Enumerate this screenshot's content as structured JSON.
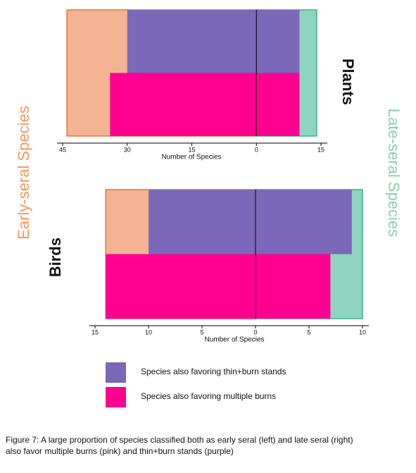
{
  "chart_data": [
    {
      "type": "bar",
      "title": "Plants",
      "xlabel": "Number of Species",
      "xlim": [
        -45,
        15
      ],
      "xticks": [
        {
          "value": -45,
          "label": "45"
        },
        {
          "value": -30,
          "label": "30"
        },
        {
          "value": -15,
          "label": "15"
        },
        0,
        15
      ],
      "totals": [
        -44,
        14
      ],
      "series": [
        {
          "values": [
            -30,
            10
          ]
        },
        {
          "values": [
            -34,
            10
          ]
        }
      ]
    },
    {
      "type": "bar",
      "title": "Birds",
      "xlabel": "Number of Species",
      "xlim": [
        -15,
        10
      ],
      "xticks": [
        {
          "value": -15,
          "label": "15"
        },
        {
          "value": -10,
          "label": "10"
        },
        {
          "value": -5,
          "label": "5"
        },
        0,
        5,
        10
      ],
      "totals": [
        -14,
        10
      ],
      "series": [
        {
          "values": [
            -10,
            9
          ]
        },
        {
          "values": [
            -14,
            7
          ]
        }
      ]
    }
  ],
  "side_labels": [
    {
      "label": "Early-seral Species",
      "color": "#f7955a",
      "fill": "#f4b494",
      "stroke": "#e8733a"
    },
    {
      "label": "Late-seral Species",
      "color": "#86cfae",
      "fill": "#8fd4be",
      "stroke": "#3fae8a"
    }
  ],
  "legend": [
    {
      "label": "Species also favoring thin+burn stands",
      "color": "#7b68b8"
    },
    {
      "label": "Species also favoring multiple burns",
      "color": "#ff0090"
    }
  ],
  "caption": [
    "Figure 7: A large proportion of species classified both as early seral (left) and late seral (right)",
    "also favor multiple burns (pink) and thin+burn stands (purple)"
  ]
}
